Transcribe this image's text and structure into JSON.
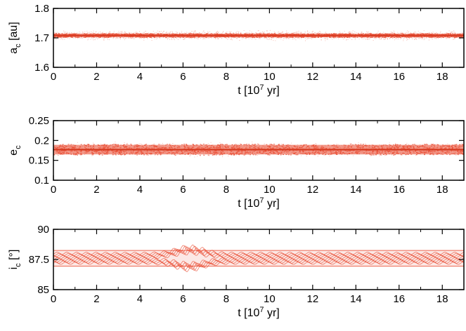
{
  "colors": {
    "series": "#e8452a",
    "axis": "#000000",
    "background": "#ffffff"
  },
  "chart_data": [
    {
      "type": "line",
      "xlabel": {
        "prefix": "t [10",
        "sup": "7",
        "suffix": " yr]"
      },
      "ylabel": {
        "base": "a",
        "sub": "c",
        "suffix": " [au]"
      },
      "xlim": [
        0,
        19
      ],
      "ylim": [
        1.6,
        1.8
      ],
      "xticks": [
        0,
        2,
        4,
        6,
        8,
        10,
        12,
        14,
        16,
        18
      ],
      "xtick_labels": [
        "0",
        "2",
        "4",
        "6",
        "8",
        "10",
        "12",
        "14",
        "16",
        "18"
      ],
      "yticks": [
        1.6,
        1.7,
        1.8
      ],
      "ytick_labels": [
        "1.6",
        "1.7",
        "1.8"
      ],
      "series": [
        {
          "center": 1.708,
          "core_halfwidth": 0.006,
          "scatter_halfwidth": 0.02
        }
      ]
    },
    {
      "type": "line",
      "xlabel": {
        "prefix": "t [10",
        "sup": "7",
        "suffix": " yr]"
      },
      "ylabel": {
        "base": "e",
        "sub": "c",
        "suffix": ""
      },
      "xlim": [
        0,
        19
      ],
      "ylim": [
        0.1,
        0.25
      ],
      "xticks": [
        0,
        2,
        4,
        6,
        8,
        10,
        12,
        14,
        16,
        18
      ],
      "xtick_labels": [
        "0",
        "2",
        "4",
        "6",
        "8",
        "10",
        "12",
        "14",
        "16",
        "18"
      ],
      "yticks": [
        0.1,
        0.15,
        0.2,
        0.25
      ],
      "ytick_labels": [
        "0.1",
        "0.15",
        "0.2",
        "0.25"
      ],
      "series": [
        {
          "center": 0.177,
          "core_halfwidth": 0.012,
          "scatter_halfwidth": 0.02
        }
      ]
    },
    {
      "type": "line",
      "xlabel": {
        "prefix": "t [10",
        "sup": "7",
        "suffix": " yr]"
      },
      "ylabel": {
        "base": "i",
        "sub": "c",
        "suffix": " [°]"
      },
      "xlim": [
        0,
        19
      ],
      "ylim": [
        85,
        90
      ],
      "xticks": [
        0,
        2,
        4,
        6,
        8,
        10,
        12,
        14,
        16,
        18
      ],
      "xtick_labels": [
        "0",
        "2",
        "4",
        "6",
        "8",
        "10",
        "12",
        "14",
        "16",
        "18"
      ],
      "yticks": [
        85,
        87.5,
        90
      ],
      "ytick_labels": [
        "85",
        "87.5",
        "90"
      ],
      "series": [
        {
          "center": 87.6,
          "core_halfwidth": 0.65,
          "scatter_halfwidth": 0.7,
          "bulge_center": 6.3,
          "bulge_width": 0.9,
          "bulge_amplitude": 0.18
        }
      ]
    }
  ]
}
